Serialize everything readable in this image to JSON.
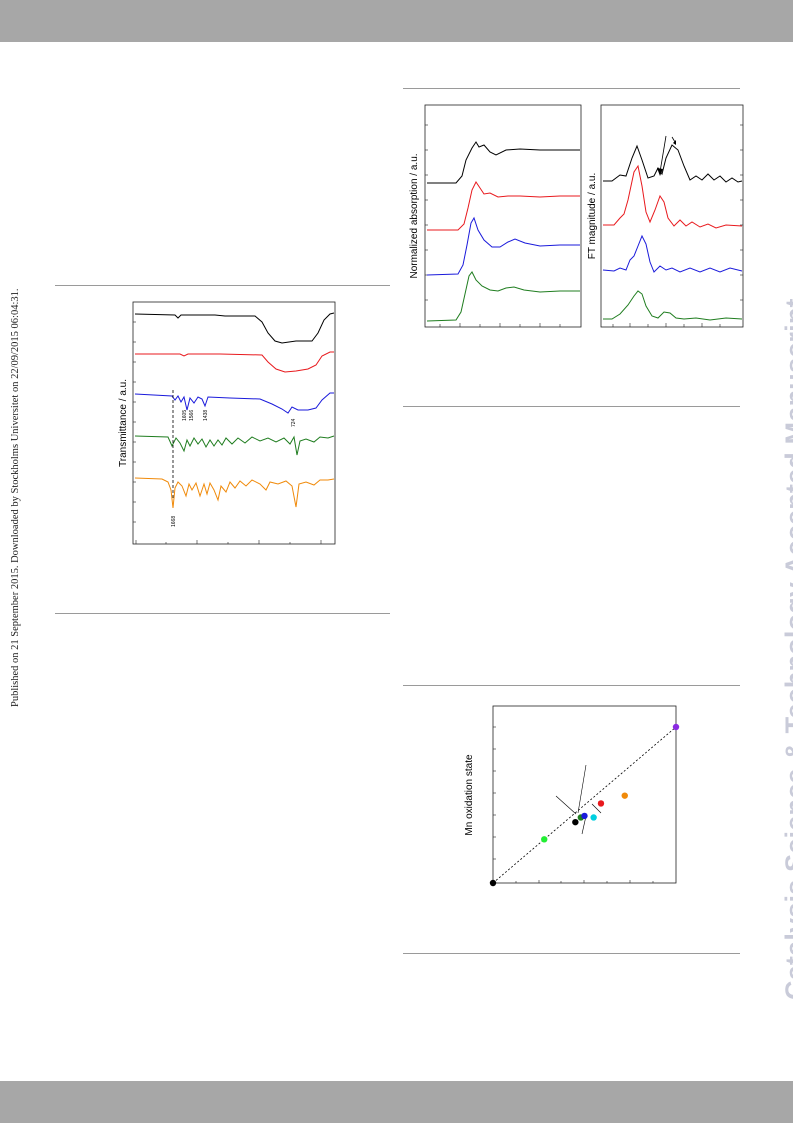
{
  "page": {
    "side_note": "Published on 21 September 2015. Downloaded by Stockholms Universitet on 22/09/2015 06:04:31.",
    "watermark": "Catalysis Science & Technology Accepted Manuscript"
  },
  "colors": {
    "band": "#a7a7a7",
    "watermark": "#c9cbd9",
    "black_trace": "#000000",
    "red_trace": "#e8191d",
    "blue_trace": "#1a1adb",
    "green_trace": "#1f7d1f",
    "orange_trace": "#f08a0a"
  },
  "ir_figure": {
    "ylabel": "Transmittance / a.u.",
    "peak_labels": [
      "1605",
      "1566",
      "1438",
      "724",
      "1668"
    ],
    "series_colors": [
      "black",
      "red",
      "blue",
      "green",
      "orange"
    ]
  },
  "xas_figure": {
    "left_ylabel": "Normalized absorption / a.u.",
    "right_ylabel": "FT magnitude / a.u.",
    "series_colors": [
      "black",
      "red",
      "blue",
      "green"
    ]
  },
  "chart_data": [
    {
      "type": "scatter",
      "ylabel": "Mn oxidation state",
      "xlabel": "",
      "title": "",
      "trend": "dashed linear fit",
      "grid": false,
      "points": [
        {
          "color": "#000000",
          "x": 0.0,
          "y": 0.0
        },
        {
          "color": "#22ee33",
          "x": 0.28,
          "y": 0.28
        },
        {
          "color": "#000000",
          "x": 0.45,
          "y": 0.39
        },
        {
          "color": "#1f7d1f",
          "x": 0.48,
          "y": 0.42
        },
        {
          "color": "#1a1adb",
          "x": 0.5,
          "y": 0.43
        },
        {
          "color": "#00d0e0",
          "x": 0.55,
          "y": 0.42
        },
        {
          "color": "#e8191d",
          "x": 0.59,
          "y": 0.51
        },
        {
          "color": "#f08a0a",
          "x": 0.72,
          "y": 0.56
        },
        {
          "color": "#8a2be2",
          "x": 1.0,
          "y": 1.0
        }
      ]
    }
  ]
}
